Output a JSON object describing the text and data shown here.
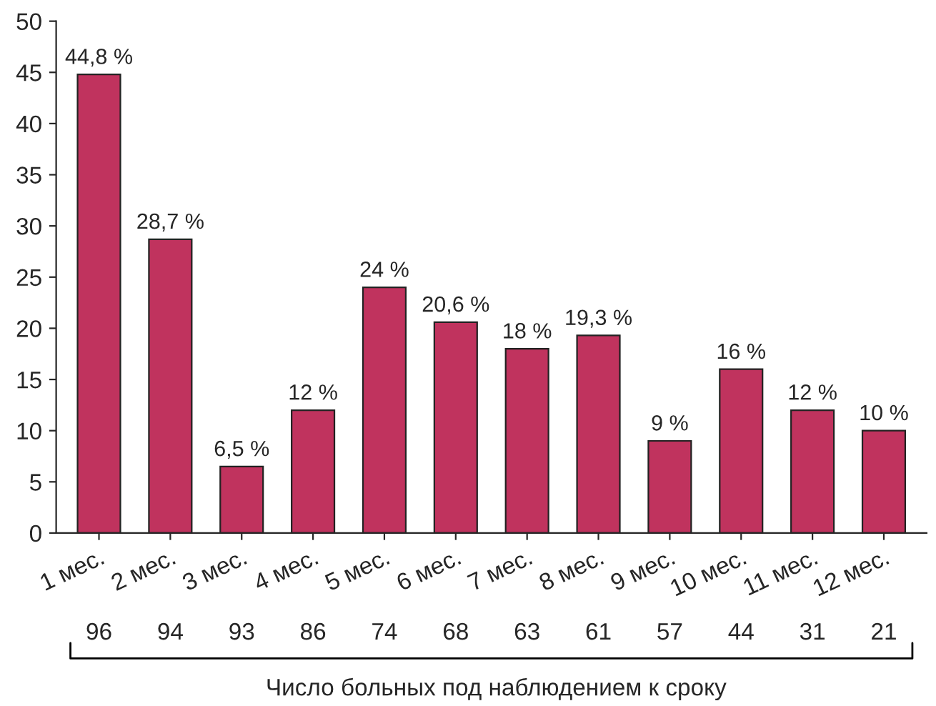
{
  "chart_data": {
    "type": "bar",
    "xlabel": "Число больных под наблюдением к сроку",
    "categories": [
      "1 мес.",
      "2 мес.",
      "3 мес.",
      "4 мес.",
      "5 мес.",
      "6 мес.",
      "7 мес.",
      "8 мес.",
      "9 мес.",
      "10 мес.",
      "11 мес.",
      "12 мес."
    ],
    "values": [
      44.8,
      28.7,
      6.5,
      12,
      24,
      20.6,
      18,
      19.3,
      9,
      16,
      12,
      10
    ],
    "value_labels": [
      "44,8 %",
      "28,7 %",
      "6,5 %",
      "12 %",
      "24 %",
      "20,6 %",
      "18 %",
      "19,3 %",
      "9 %",
      "16 %",
      "12 %",
      "10 %"
    ],
    "color": "#c0335e",
    "ylim": [
      0,
      50
    ],
    "yticks": [
      0,
      5,
      10,
      15,
      20,
      25,
      30,
      35,
      40,
      45,
      50
    ],
    "grid": false,
    "annotations": [
      "96",
      "94",
      "93",
      "86",
      "74",
      "68",
      "63",
      "61",
      "57",
      "44",
      "31",
      "21"
    ]
  }
}
